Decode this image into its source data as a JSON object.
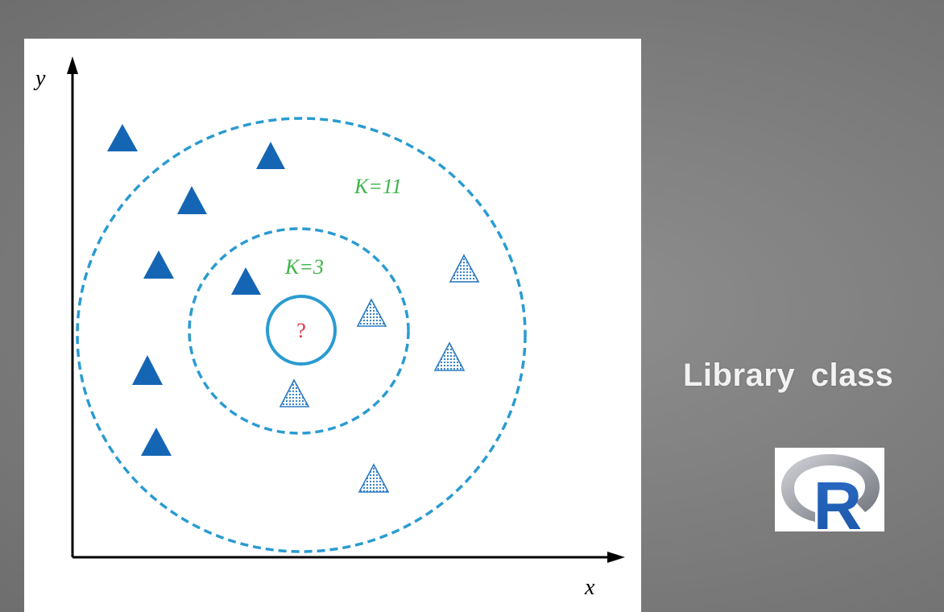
{
  "diagram": {
    "axis_x_label": "x",
    "axis_y_label": "y",
    "inner_circle_label": "K=3",
    "outer_circle_label": "K=11",
    "query_label": "?",
    "class_a_name": "solid",
    "class_b_name": "dotted"
  },
  "side": {
    "label": "Library  class"
  },
  "logo": {
    "letter": "R"
  },
  "colors": {
    "class_a": "#1466b4",
    "class_b": "#2d7bc4",
    "circle": "#2a9bd1",
    "k_label": "#3cb54a",
    "query": "#e0303c",
    "axis": "#000000",
    "background": "#808080"
  }
}
